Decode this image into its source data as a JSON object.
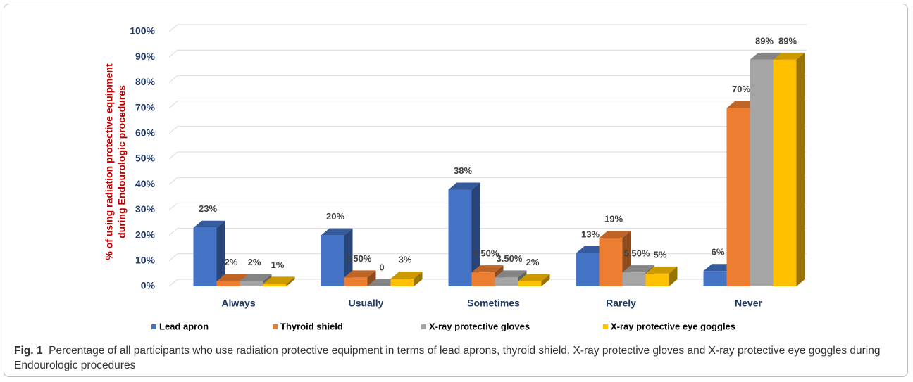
{
  "chart_data": {
    "type": "bar3d",
    "y_label": [
      "% of using radiation protective equipment",
      "during Endourologic procedures"
    ],
    "categories": [
      "Always",
      "Usually",
      "Sometimes",
      "Rarely",
      "Never"
    ],
    "series": [
      {
        "name": "Lead apron",
        "color": "#4472c4",
        "values": [
          23,
          20,
          38,
          13,
          6
        ],
        "value_labels": [
          "23%",
          "20%",
          "38%",
          "13%",
          "6%"
        ]
      },
      {
        "name": "Thyroid shield",
        "color": "#ed7d31",
        "values": [
          2,
          3.5,
          5.5,
          19,
          70
        ],
        "value_labels": [
          "2%",
          "3.50%",
          "5.50%",
          "19%",
          "70%"
        ]
      },
      {
        "name": "X-ray protective gloves",
        "color": "#a5a5a5",
        "values": [
          2,
          0,
          3.5,
          5.5,
          89
        ],
        "value_labels": [
          "2%",
          "0",
          "3.50%",
          "5.50%",
          "89%"
        ]
      },
      {
        "name": "X-ray protective eye goggles",
        "color": "#ffc000",
        "values": [
          1,
          3,
          2,
          5,
          89
        ],
        "value_labels": [
          "1%",
          "3%",
          "2%",
          "5%",
          "89%"
        ]
      }
    ],
    "ylim": [
      0,
      100
    ],
    "yticks": [
      {
        "value": 0,
        "label": "0%"
      },
      {
        "value": 10,
        "label": "10%"
      },
      {
        "value": 20,
        "label": "20%"
      },
      {
        "value": 30,
        "label": "30%"
      },
      {
        "value": 40,
        "label": "40%"
      },
      {
        "value": 50,
        "label": "50%"
      },
      {
        "value": 60,
        "label": "60%"
      },
      {
        "value": 70,
        "label": "70%"
      },
      {
        "value": 80,
        "label": "80%"
      },
      {
        "value": 90,
        "label": "90%"
      },
      {
        "value": 100,
        "label": "100%"
      }
    ],
    "grid": true,
    "legend": "bottom"
  },
  "caption": {
    "label": "Fig. 1",
    "text": "Percentage of all participants who use radiation protective equipment in terms of lead aprons, thyroid shield, X-ray protective gloves and X-ray protective eye goggles during Endourologic procedures"
  }
}
